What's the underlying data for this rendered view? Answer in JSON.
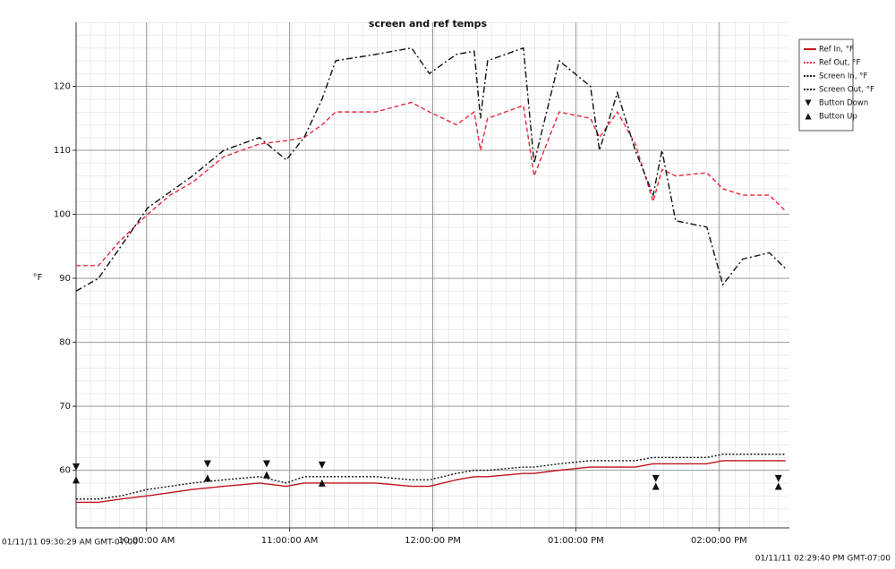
{
  "chart_data": {
    "type": "line",
    "title": "screen and ref temps",
    "y_label": "°F",
    "annotations": [
      "01/11/11 09:30:29 AM GMT-07:00",
      "01/11/11 02:29:40 PM GMT-07:00"
    ],
    "x": [
      570.5,
      579.9,
      589.3,
      600.5,
      609.9,
      619.3,
      632.4,
      647.4,
      658.6,
      666.1,
      673.6,
      679.3,
      696.1,
      711.1,
      718.6,
      729.9,
      737.4,
      740.0,
      743.0,
      758.0,
      762.5,
      773.0,
      786.1,
      789.9,
      797.4,
      804.9,
      812.4,
      816.1,
      821.8,
      834.9,
      841.6,
      849.9,
      861.1,
      867.9
    ],
    "series": [
      {
        "name": "Ref In, °F",
        "color": "#c0141e",
        "line_style": "solid",
        "values": [
          55,
          55,
          55.5,
          56,
          56.5,
          57,
          57.5,
          58,
          57.5,
          58,
          58,
          58,
          58,
          57.5,
          57.5,
          58.5,
          59,
          59,
          59,
          59.5,
          59.5,
          60,
          60.5,
          60.5,
          60.5,
          60.5,
          61,
          61,
          61,
          61,
          61.5,
          61.5,
          61.5,
          61.5
        ]
      },
      {
        "name": "Ref Out, °F",
        "color": "#e8283c",
        "line_style": "dashed",
        "values": [
          92,
          92,
          96,
          100,
          103,
          105,
          109,
          111,
          111.5,
          112,
          114,
          116,
          116,
          117.5,
          116,
          114,
          116,
          110,
          115,
          117,
          106,
          116,
          115,
          112,
          116,
          111,
          102,
          107,
          106,
          106.5,
          104,
          103,
          103,
          100.5
        ]
      },
      {
        "name": "Screen In, °F",
        "color": "#111111",
        "line_style": "dashdot",
        "values": [
          88,
          90,
          95,
          101,
          103.5,
          106,
          110,
          112,
          108.5,
          112,
          118,
          124,
          125,
          126,
          122,
          125,
          125.5,
          115,
          124,
          126,
          108,
          124,
          120,
          110,
          119,
          110,
          103,
          110,
          99,
          98,
          89,
          93,
          94,
          91.5
        ]
      },
      {
        "name": "Screen Out, °F",
        "color": "#111111",
        "line_style": "dotted",
        "values": [
          55.5,
          55.5,
          56,
          57,
          57.5,
          58,
          58.5,
          59,
          58,
          59,
          59,
          59,
          59,
          58.5,
          58.5,
          59.5,
          60,
          60,
          60,
          60.5,
          60.5,
          61,
          61.5,
          61.5,
          61.5,
          61.5,
          62,
          62,
          62,
          62,
          62.5,
          62.5,
          62.5,
          62.5
        ]
      }
    ],
    "markers": [
      {
        "name": "Button Down",
        "marker": "down",
        "color": "#111111",
        "x": [
          570.5,
          625.6,
          650.4,
          673.6,
          813.5,
          864.9
        ],
        "values": [
          60.5,
          61,
          61,
          60.8,
          58.7,
          58.7
        ]
      },
      {
        "name": "Button Up",
        "marker": "up",
        "color": "#111111",
        "x": [
          570.5,
          625.6,
          650.4,
          673.6,
          813.5,
          864.9
        ],
        "values": [
          58.5,
          58.8,
          59.3,
          58,
          57.5,
          57.5
        ]
      }
    ],
    "xlim": [
      570.5,
      869.5
    ],
    "xticks": [
      {
        "value": 600,
        "label": "10:00:00 AM"
      },
      {
        "value": 660,
        "label": "11:00:00 AM"
      },
      {
        "value": 720,
        "label": "12:00:00 PM"
      },
      {
        "value": 780,
        "label": "01:00:00 PM"
      },
      {
        "value": 840,
        "label": "02:00:00 PM"
      }
    ],
    "ylim": [
      51,
      130
    ],
    "yticks": [
      60,
      70,
      80,
      90,
      100,
      110,
      120
    ],
    "grid": true,
    "legend": "top-right"
  }
}
